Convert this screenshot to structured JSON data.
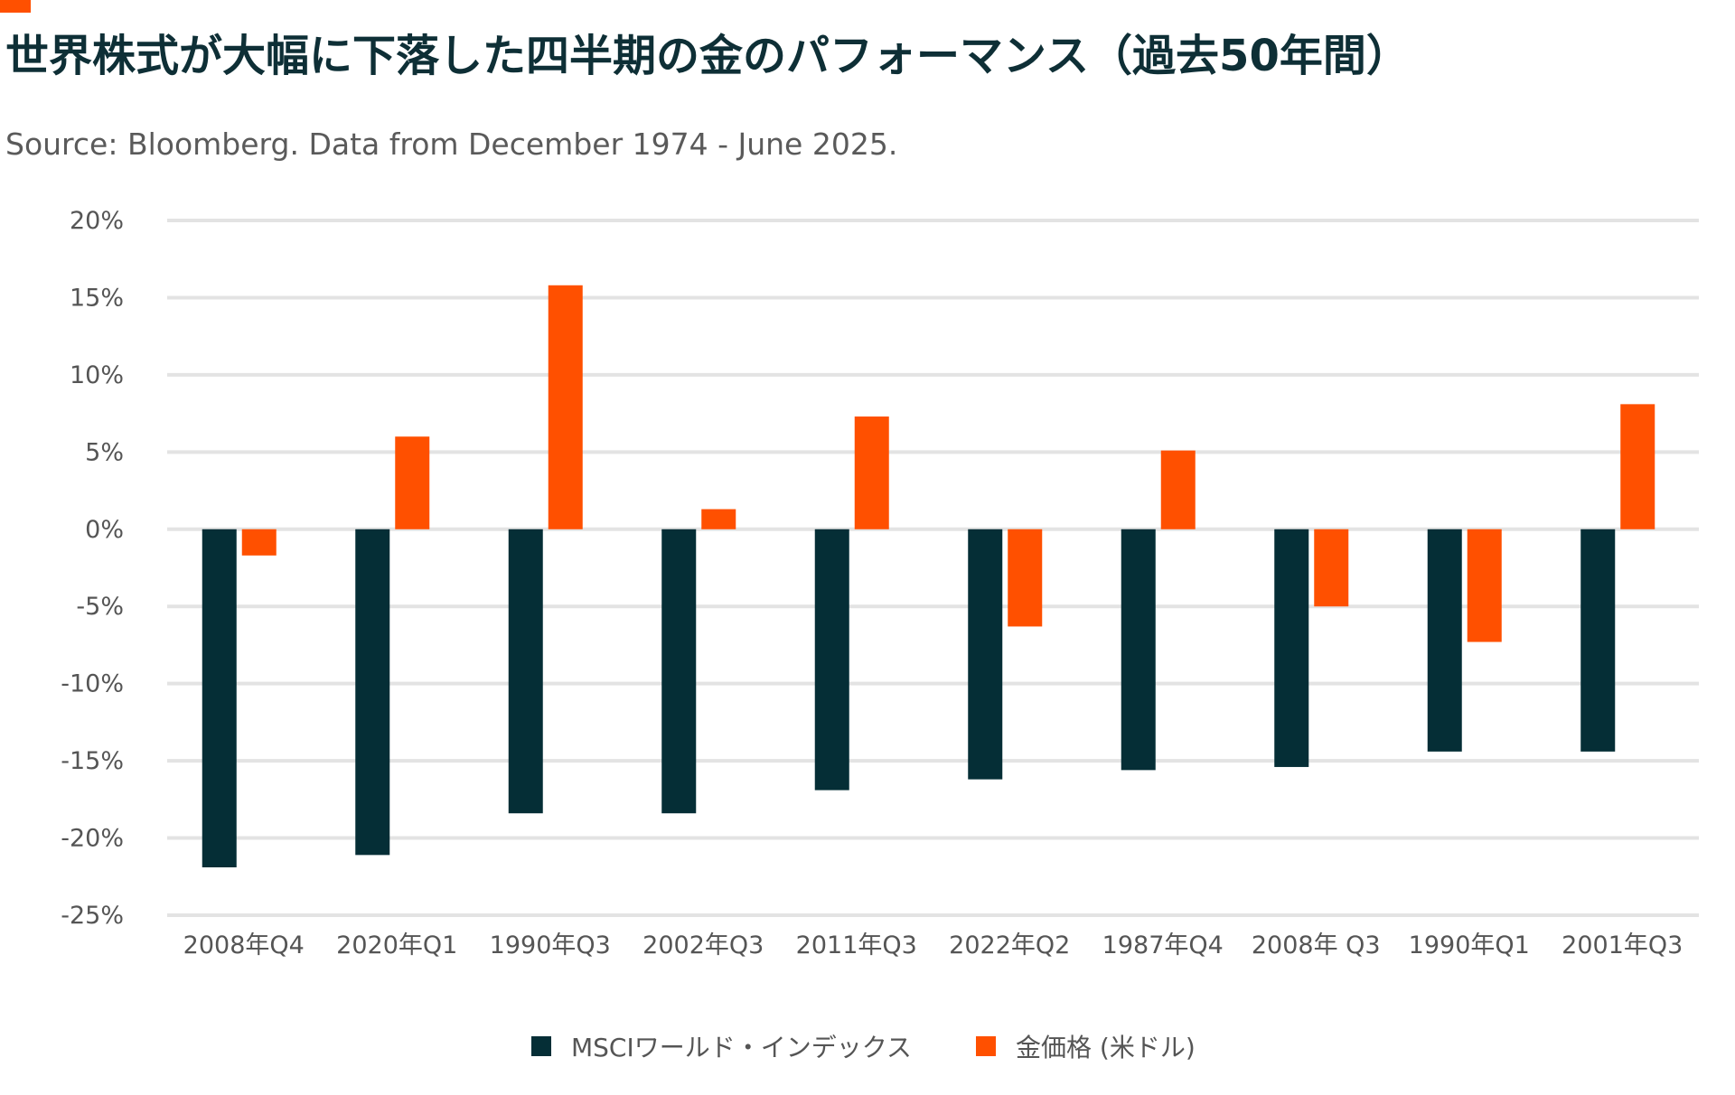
{
  "page": {
    "title": "世界株式が大幅に下落した四半期の金のパフォーマンス（過去50年間）",
    "subtitle": "Source: Bloomberg. Data from December 1974 - June 2025."
  },
  "colors": {
    "msci": "#052E36",
    "gold": "#FF5000",
    "grid": "#E3E3E3",
    "title": "#0E2F36",
    "text": "#555555"
  },
  "chart_data": {
    "type": "bar",
    "title": "世界株式が大幅に下落した四半期の金のパフォーマンス（過去50年間）",
    "subtitle": "Source: Bloomberg. Data from December 1974 - June 2025.",
    "xlabel": "",
    "ylabel": "",
    "categories": [
      "2008年Q4",
      "2020年Q1",
      "1990年Q3",
      "2002年Q3",
      "2011年Q3",
      "2022年Q2",
      "1987年Q4",
      "2008年 Q3",
      "1990年Q1",
      "2001年Q3"
    ],
    "series": [
      {
        "name": "MSCIワールド・インデックス",
        "color": "#052E36",
        "values": [
          -21.9,
          -21.1,
          -18.4,
          -18.4,
          -16.9,
          -16.2,
          -15.6,
          -15.4,
          -14.4,
          -14.4
        ]
      },
      {
        "name": "金価格 (米ドル)",
        "color": "#FF5000",
        "values": [
          -1.7,
          6.0,
          15.8,
          1.3,
          7.3,
          -6.3,
          5.1,
          -5.0,
          -7.3,
          8.1
        ]
      }
    ],
    "ylim": [
      -25,
      20
    ],
    "yticks": [
      20,
      15,
      10,
      5,
      0,
      -5,
      -10,
      -15,
      -20,
      -25
    ],
    "ytick_labels": [
      "20%",
      "15%",
      "10%",
      "5%",
      "0%",
      "-5%",
      "-10%",
      "-15%",
      "-20%",
      "-25%"
    ],
    "grid": true,
    "legend": "bottom-center"
  }
}
